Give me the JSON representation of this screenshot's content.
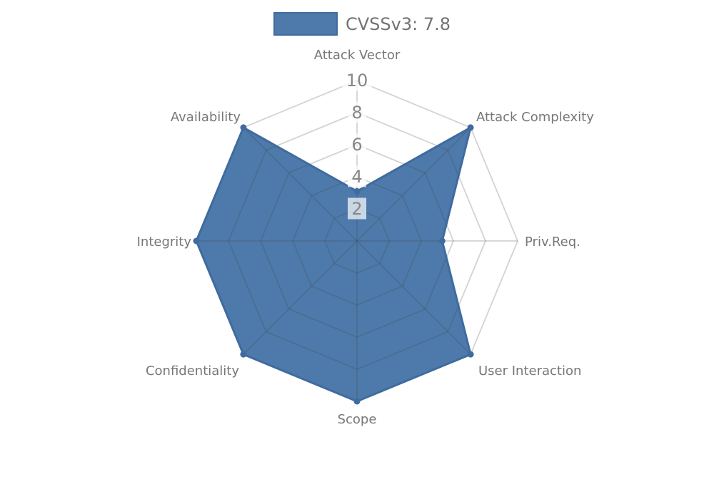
{
  "legend": {
    "label": "CVSSv3: 7.8"
  },
  "chart_data": {
    "type": "radar",
    "title": "",
    "axes": [
      "Attack Vector",
      "Attack Complexity",
      "Priv.Req.",
      "User Interaction",
      "Scope",
      "Confidentiality",
      "Integrity",
      "Availability"
    ],
    "series": [
      {
        "name": "CVSSv3: 7.8",
        "values": [
          3.1,
          10,
          5.3,
          10,
          10,
          10,
          10,
          10
        ]
      }
    ],
    "scale": {
      "min": 0,
      "max": 10,
      "tick_step": 2,
      "ticks": [
        2,
        4,
        6,
        8,
        10
      ]
    },
    "grid": true,
    "legend_position": "top",
    "colors": {
      "fill": "#4d7aab",
      "border": "#3f6b9e",
      "point": "#3f6b9e",
      "grid_line": "rgba(70,70,70,0.24)",
      "tick_text": "#878787",
      "axis_text": "#777777",
      "legend_text": "#737373",
      "tick_backdrop": "rgba(255,255,255,0.7)"
    }
  }
}
